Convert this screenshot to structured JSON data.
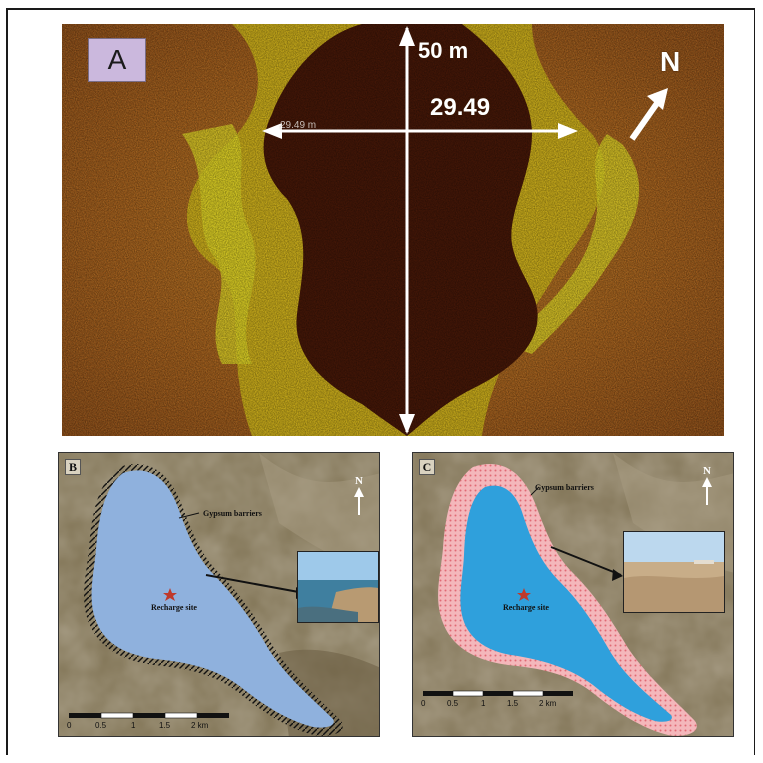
{
  "panel_a": {
    "tag": "A",
    "length_label": "50 m",
    "width_label": "29.49",
    "small_width_label": "29.49 m",
    "north_label": "N"
  },
  "panel_b": {
    "tag": "B",
    "north_label": "N",
    "barrier_label": "Gypsum barriers",
    "site_label": "Recharge site",
    "scale": [
      "0",
      "0.5",
      "1",
      "1.5",
      "2 km"
    ]
  },
  "panel_c": {
    "tag": "C",
    "north_label": "N",
    "barrier_label": "Gypsum barriers",
    "site_label": "Recharge site",
    "scale": [
      "0",
      "0.5",
      "1",
      "1.5",
      "2 km"
    ]
  },
  "colors": {
    "sonar_bright": "#f2e21e",
    "sonar_mid": "#b5590f",
    "sonar_dark": "#4a1708",
    "lake_b": "#8fb1dd",
    "lake_c": "#2fa0dc",
    "barrier_c": "#f4b7bb",
    "star": "#c0392b"
  }
}
